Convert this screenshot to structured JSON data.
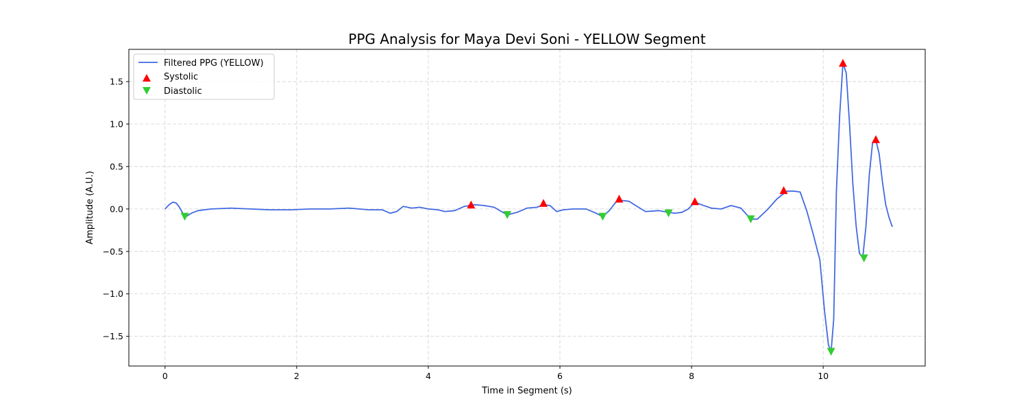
{
  "chart_data": {
    "type": "line",
    "title": "PPG Analysis for Maya Devi Soni - YELLOW Segment",
    "xlabel": "Time in Segment (s)",
    "ylabel": "Amplitude (A.U.)",
    "xlim": [
      -0.55,
      11.55
    ],
    "ylim": [
      -1.85,
      1.88
    ],
    "xticks": [
      0,
      2,
      4,
      6,
      8,
      10
    ],
    "yticks": [
      -1.5,
      -1.0,
      -0.5,
      0.0,
      0.5,
      1.0,
      1.5
    ],
    "xtick_labels": [
      "0",
      "2",
      "4",
      "6",
      "8",
      "10"
    ],
    "ytick_labels": [
      "−1.5",
      "−1.0",
      "−0.5",
      "0.0",
      "0.5",
      "1.0",
      "1.5"
    ],
    "grid": true,
    "legend_position": "upper-left",
    "series": [
      {
        "name": "Filtered PPG (YELLOW)",
        "kind": "line",
        "color": "#4169e1",
        "x": [
          0.0,
          0.06,
          0.12,
          0.17,
          0.22,
          0.27,
          0.32,
          0.4,
          0.5,
          0.7,
          1.0,
          1.3,
          1.6,
          1.9,
          2.2,
          2.5,
          2.8,
          3.1,
          3.3,
          3.42,
          3.52,
          3.62,
          3.75,
          3.87,
          4.0,
          4.15,
          4.25,
          4.4,
          4.55,
          4.7,
          4.85,
          5.0,
          5.2,
          5.35,
          5.5,
          5.65,
          5.75,
          5.85,
          5.95,
          6.05,
          6.2,
          6.4,
          6.55,
          6.65,
          6.75,
          6.85,
          6.95,
          7.05,
          7.15,
          7.3,
          7.5,
          7.65,
          7.75,
          7.85,
          7.95,
          8.05,
          8.15,
          8.3,
          8.45,
          8.6,
          8.75,
          8.9,
          9.0,
          9.15,
          9.3,
          9.45,
          9.55,
          9.65,
          9.75,
          9.85,
          9.95,
          10.02,
          10.08,
          10.12,
          10.16,
          10.2,
          10.25,
          10.3,
          10.35,
          10.4,
          10.45,
          10.5,
          10.55,
          10.6,
          10.65,
          10.7,
          10.75,
          10.8,
          10.85,
          10.9,
          10.95,
          11.0,
          11.05
        ],
        "y": [
          0.0,
          0.05,
          0.08,
          0.07,
          0.02,
          -0.05,
          -0.09,
          -0.05,
          -0.02,
          0.0,
          0.01,
          0.0,
          -0.01,
          -0.01,
          0.0,
          0.0,
          0.01,
          -0.01,
          -0.01,
          -0.05,
          -0.03,
          0.03,
          0.01,
          0.02,
          0.0,
          -0.01,
          -0.03,
          -0.02,
          0.03,
          0.05,
          0.04,
          0.02,
          -0.07,
          -0.04,
          0.01,
          0.02,
          0.05,
          0.04,
          -0.03,
          -0.01,
          0.0,
          0.0,
          -0.05,
          -0.09,
          -0.02,
          0.08,
          0.1,
          0.09,
          0.04,
          -0.03,
          -0.02,
          -0.04,
          -0.05,
          -0.04,
          0.0,
          0.08,
          0.05,
          0.01,
          0.0,
          0.04,
          0.01,
          -0.12,
          -0.12,
          -0.01,
          0.12,
          0.21,
          0.21,
          0.2,
          -0.02,
          -0.3,
          -0.6,
          -1.2,
          -1.6,
          -1.68,
          -1.3,
          0.2,
          1.1,
          1.72,
          1.6,
          1.0,
          0.3,
          -0.2,
          -0.52,
          -0.58,
          -0.2,
          0.4,
          0.78,
          0.81,
          0.65,
          0.32,
          0.05,
          -0.1,
          -0.21
        ]
      },
      {
        "name": "Systolic",
        "kind": "marker",
        "marker": "triangle-up",
        "color": "#ff0000",
        "x": [
          4.65,
          5.75,
          6.9,
          8.05,
          9.4,
          10.3,
          10.8
        ],
        "y": [
          0.05,
          0.07,
          0.12,
          0.09,
          0.22,
          1.72,
          0.82
        ]
      },
      {
        "name": "Diastolic",
        "kind": "marker",
        "marker": "triangle-down",
        "color": "#32cd32",
        "x": [
          0.3,
          5.2,
          6.65,
          7.65,
          8.9,
          10.12,
          10.62
        ],
        "y": [
          -0.09,
          -0.07,
          -0.09,
          -0.05,
          -0.12,
          -1.68,
          -0.58
        ]
      }
    ]
  }
}
